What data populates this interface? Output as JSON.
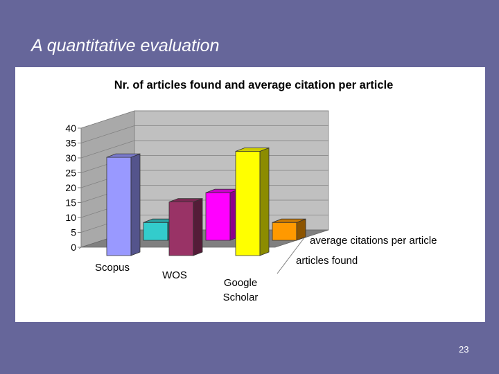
{
  "slide": {
    "title": "A quantitative evaluation",
    "page_number": "23"
  },
  "colors": {
    "background": "#66669a",
    "panel": "#ffffff",
    "wall": "#c0c0c0",
    "floor": "#808080"
  },
  "chart_data": {
    "type": "bar",
    "subtype": "3d-clustered-depth",
    "title": "Nr. of articles found and average citation per article",
    "categories": [
      "Scopus",
      "WOS",
      "Google\nScholar"
    ],
    "ylim": [
      0,
      40
    ],
    "yticks": [
      0,
      5,
      10,
      15,
      20,
      25,
      30,
      35,
      40
    ],
    "grid": true,
    "series": [
      {
        "name": "articles found",
        "values": [
          33,
          18,
          35
        ],
        "colors": [
          "#9999ff",
          "#993366",
          "#ffff00"
        ]
      },
      {
        "name": "average citations per article",
        "values": [
          6,
          16,
          6
        ],
        "colors": [
          "#33cccc",
          "#ff00ff",
          "#ff9900"
        ]
      }
    ]
  }
}
